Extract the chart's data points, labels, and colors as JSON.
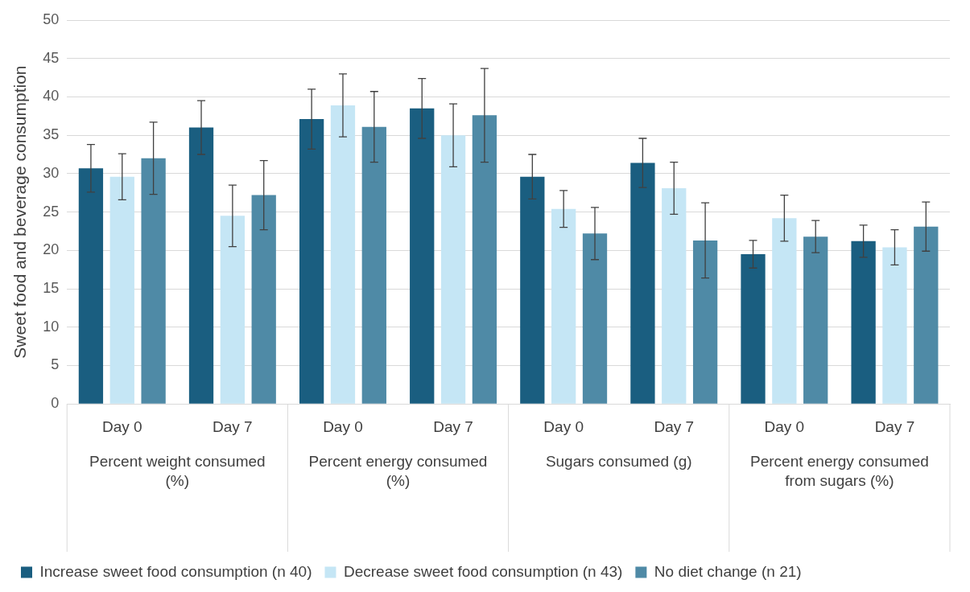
{
  "chart_data": {
    "type": "bar",
    "ylabel": "Sweet food and beverage consumption",
    "categories": [
      "Day 0",
      "Day 7",
      "Day 0",
      "Day 7",
      "Day 0",
      "Day 7",
      "Day 0",
      "Day 7"
    ],
    "annotations": [
      "Percent weight consumed (%)",
      "Percent energy consumed (%)",
      "Sugars consumed (g)",
      "Percent energy consumed from sugars (%)"
    ],
    "series": [
      {
        "name": "Increase sweet food consumption (n 40)",
        "color": "#1a5e80",
        "values": [
          30.7,
          36.0,
          37.1,
          38.5,
          29.6,
          31.4,
          19.5,
          21.2
        ],
        "errors": [
          3.1,
          3.5,
          3.9,
          3.9,
          2.9,
          3.2,
          1.8,
          2.1
        ]
      },
      {
        "name": "Decrease sweet food consumption (n 43)",
        "color": "#c5e6f5",
        "values": [
          29.6,
          24.5,
          38.9,
          35.0,
          25.4,
          28.1,
          24.2,
          20.4
        ],
        "errors": [
          3.0,
          4.0,
          4.1,
          4.1,
          2.4,
          3.4,
          3.0,
          2.3
        ]
      },
      {
        "name": "No diet change (n 21)",
        "color": "#4f8aa6",
        "values": [
          32.0,
          27.2,
          36.1,
          37.6,
          22.2,
          21.3,
          21.8,
          23.1
        ],
        "errors": [
          4.7,
          4.5,
          4.6,
          6.1,
          3.4,
          4.9,
          2.1,
          3.2
        ]
      }
    ],
    "ylim": [
      0,
      50
    ],
    "yticks": [
      0,
      5,
      10,
      15,
      20,
      25,
      30,
      35,
      40,
      45,
      50
    ],
    "grid": "y",
    "legend": "bottom"
  }
}
